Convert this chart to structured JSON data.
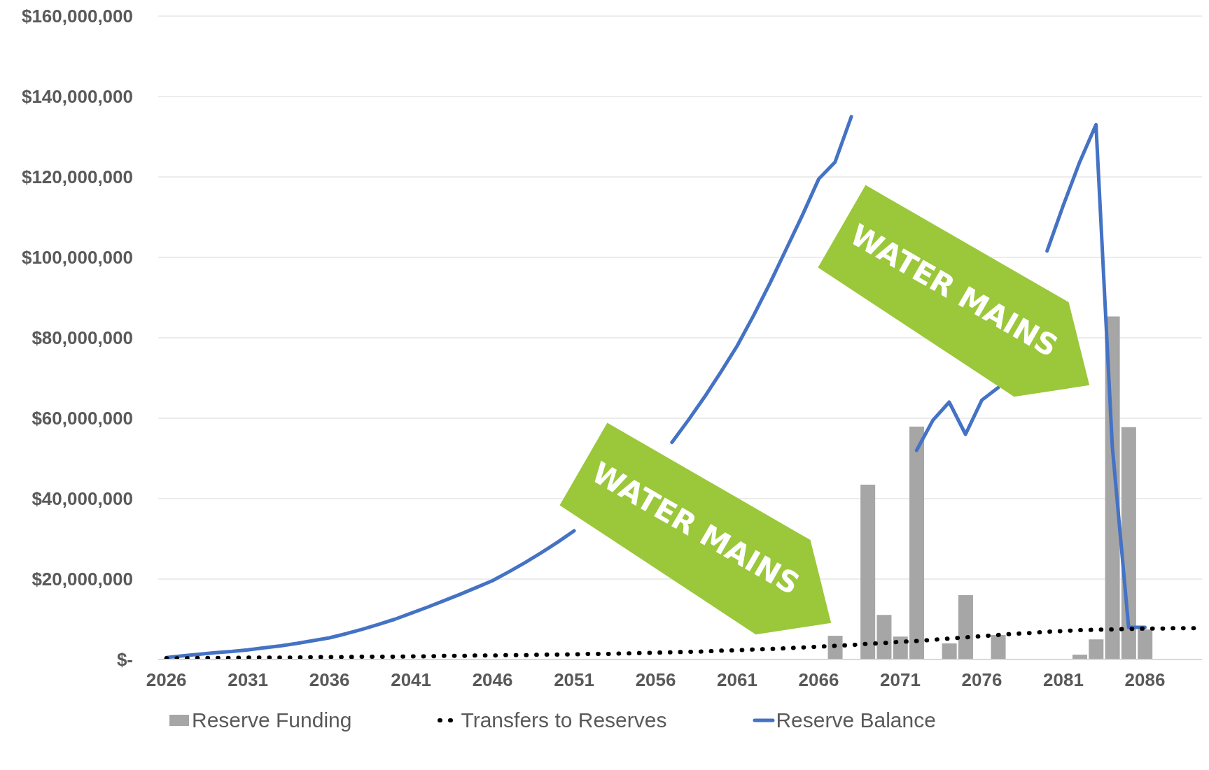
{
  "chart_data": {
    "type": "bar",
    "categories": [
      "2026",
      null,
      null,
      null,
      null,
      "2031",
      null,
      null,
      null,
      null,
      "2036",
      null,
      null,
      null,
      null,
      "2041",
      null,
      null,
      null,
      null,
      "2046",
      null,
      null,
      null,
      null,
      "2051",
      null,
      null,
      null,
      null,
      "2056",
      null,
      null,
      null,
      null,
      "2061",
      null,
      null,
      null,
      null,
      "2066",
      null,
      null,
      null,
      null,
      "2071",
      null,
      null,
      null,
      null,
      "2076",
      null,
      null,
      null,
      null,
      "2081",
      null,
      null,
      null,
      null,
      "2086",
      null,
      null,
      null
    ],
    "series": [
      {
        "name": "Reserve Funding",
        "type": "bar",
        "color": "#a6a6a6",
        "values": [
          null,
          null,
          null,
          null,
          null,
          null,
          null,
          null,
          null,
          null,
          null,
          null,
          null,
          null,
          null,
          null,
          null,
          null,
          null,
          null,
          null,
          null,
          null,
          null,
          null,
          null,
          null,
          null,
          null,
          null,
          null,
          null,
          null,
          null,
          null,
          null,
          null,
          null,
          null,
          null,
          null,
          5900000,
          null,
          43500000,
          11100000,
          5700000,
          57900000,
          null,
          4000000,
          16000000,
          null,
          6100000,
          null,
          null,
          null,
          null,
          1200000,
          5000000,
          85300000,
          57800000,
          7500000,
          null,
          null,
          null
        ]
      },
      {
        "name": "Transfers to Reserves",
        "type": "line",
        "line_style": "dotted",
        "color": "#000000",
        "values": [
          300000,
          300000,
          400000,
          400000,
          400000,
          500000,
          500000,
          500000,
          500000,
          600000,
          600000,
          600000,
          700000,
          700000,
          700000,
          800000,
          800000,
          900000,
          900000,
          1000000,
          1000000,
          1100000,
          1100000,
          1200000,
          1200000,
          1300000,
          1400000,
          1400000,
          1500000,
          1600000,
          1700000,
          1800000,
          1900000,
          2000000,
          2200000,
          2300000,
          2500000,
          2600000,
          2800000,
          3000000,
          3200000,
          3400000,
          3600000,
          3900000,
          4100000,
          4400000,
          4600000,
          4900000,
          5200000,
          5500000,
          5800000,
          6100000,
          6400000,
          6600000,
          6900000,
          7100000,
          7300000,
          7400000,
          7500000,
          7600000,
          7700000,
          7700000,
          7800000,
          7800000
        ]
      },
      {
        "name": "Reserve Balance",
        "type": "line",
        "line_style": "solid",
        "color": "#4472c4",
        "values": [
          500000,
          900000,
          1300000,
          1700000,
          2000000,
          2400000,
          2900000,
          3400000,
          4000000,
          4700000,
          5400000,
          6400000,
          7500000,
          8700000,
          10000000,
          11500000,
          13000000,
          14600000,
          16200000,
          17900000,
          19600000,
          21800000,
          24100000,
          26600000,
          29200000,
          32000000,
          null,
          null,
          null,
          null,
          null,
          54000000,
          59500000,
          65300000,
          71500000,
          78000000,
          85500000,
          93500000,
          102000000,
          110500000,
          119500000,
          123700000,
          135000000,
          null,
          null,
          null,
          52000000,
          59500000,
          64000000,
          56000000,
          64500000,
          67600000,
          null,
          null,
          101600000,
          113000000,
          123700000,
          133000000,
          53000000,
          8000000,
          8000000,
          null,
          null,
          null
        ]
      }
    ],
    "ylim": [
      0,
      160000000
    ],
    "yticks": [
      {
        "value": 0,
        "label": "$-"
      },
      {
        "value": 20000000,
        "label": "$20,000,000"
      },
      {
        "value": 40000000,
        "label": "$40,000,000"
      },
      {
        "value": 60000000,
        "label": "$60,000,000"
      },
      {
        "value": 80000000,
        "label": "$80,000,000"
      },
      {
        "value": 100000000,
        "label": "$100,000,000"
      },
      {
        "value": 120000000,
        "label": "$120,000,000"
      },
      {
        "value": 140000000,
        "label": "$140,000,000"
      },
      {
        "value": 160000000,
        "label": "$160,000,000"
      }
    ],
    "grid": "y",
    "legend": "bottom",
    "marker": "none",
    "annotations": [
      "WATER MAINS",
      "WATER MAINS"
    ]
  }
}
